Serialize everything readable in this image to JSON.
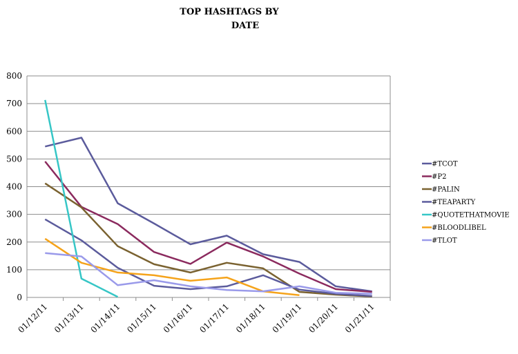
{
  "chart_data": {
    "type": "line",
    "title_lines": [
      "TOP HASHTAGS BY",
      "DATE"
    ],
    "xlabel": "",
    "ylabel": "",
    "categories": [
      "01/12/11",
      "01/13/11",
      "01/14/11",
      "01/15/11",
      "01/16/11",
      "01/17/11",
      "01/18/11",
      "01/19/11",
      "01/20/11",
      "01/21/11"
    ],
    "ylim": [
      0,
      800
    ],
    "yticks": [
      0,
      100,
      200,
      300,
      400,
      500,
      600,
      700,
      800
    ],
    "grid": true,
    "legend_position": "right",
    "series": [
      {
        "name": "#TCOT",
        "color": "#5b5b9c",
        "values": [
          545,
          577,
          340,
          267,
          192,
          223,
          156,
          128,
          40,
          22
        ]
      },
      {
        "name": "#P2",
        "color": "#8b2a5e",
        "values": [
          491,
          327,
          265,
          164,
          121,
          198,
          148,
          86,
          30,
          20
        ]
      },
      {
        "name": "#PALIN",
        "color": "#7a6230",
        "values": [
          412,
          325,
          185,
          120,
          90,
          125,
          105,
          20,
          10,
          3
        ]
      },
      {
        "name": "#TEAPARTY",
        "color": "#5b5b9c",
        "values": [
          282,
          206,
          107,
          42,
          30,
          40,
          80,
          28,
          13,
          5
        ]
      },
      {
        "name": "#QUOTETHATMOVIE",
        "color": "#36c6c6",
        "values": [
          713,
          68,
          2,
          null,
          null,
          null,
          null,
          null,
          null,
          null
        ]
      },
      {
        "name": "#BLOODLIBEL",
        "color": "#f5a31a",
        "values": [
          212,
          125,
          90,
          80,
          60,
          72,
          22,
          8,
          null,
          null
        ]
      },
      {
        "name": "#TLOT",
        "color": "#9a9aea",
        "values": [
          160,
          148,
          44,
          62,
          40,
          27,
          22,
          40,
          17,
          13
        ]
      }
    ]
  }
}
